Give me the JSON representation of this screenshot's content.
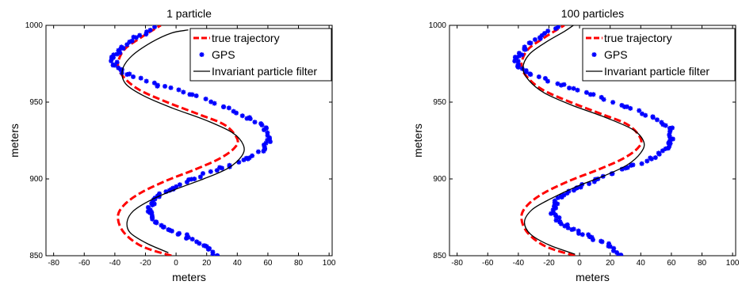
{
  "chart_data": [
    {
      "type": "line",
      "title": "1 particle",
      "xlabel": "meters",
      "ylabel": "meters",
      "xlim": [
        -85,
        102
      ],
      "ylim": [
        850,
        1000
      ],
      "xticks": [
        "-80",
        "-60",
        "-40",
        "-20",
        "0",
        "20",
        "40",
        "60",
        "80",
        "100"
      ],
      "yticks": [
        "850",
        "900",
        "950",
        "1000"
      ],
      "grid": false,
      "legend_position": "top-right",
      "series": [
        {
          "name": "true trajectory",
          "color": "#ff0000",
          "style": "dashed",
          "points": [
            [
              -3,
              850
            ],
            [
              -22,
              856
            ],
            [
              -34,
              865
            ],
            [
              -38,
              875
            ],
            [
              -34,
              883
            ],
            [
              -23,
              891
            ],
            [
              -6,
              899
            ],
            [
              12,
              906
            ],
            [
              28,
              913
            ],
            [
              38,
              920
            ],
            [
              40,
              926
            ],
            [
              32,
              935
            ],
            [
              15,
              942
            ],
            [
              -6,
              950
            ],
            [
              -24,
              958
            ],
            [
              -34,
              966
            ],
            [
              -38,
              974
            ],
            [
              -34,
              984
            ],
            [
              -23,
              992
            ],
            [
              -10,
              1000
            ]
          ]
        },
        {
          "name": "GPS",
          "color": "#0000ff",
          "style": "markers",
          "points": [
            [
              27,
              850
            ],
            [
              20,
              856
            ],
            [
              8,
              862
            ],
            [
              -5,
              867
            ],
            [
              -13,
              872
            ],
            [
              -17,
              878
            ],
            [
              -16,
              884
            ],
            [
              -12,
              889
            ],
            [
              -2,
              894
            ],
            [
              12,
              900
            ],
            [
              30,
              907
            ],
            [
              47,
              913
            ],
            [
              58,
              920
            ],
            [
              61,
              926
            ],
            [
              59,
              933
            ],
            [
              48,
              940
            ],
            [
              31,
              947
            ],
            [
              9,
              955
            ],
            [
              -12,
              961
            ],
            [
              -32,
              968
            ],
            [
              -40,
              974
            ],
            [
              -41,
              979
            ],
            [
              -36,
              985
            ],
            [
              -26,
              992
            ],
            [
              -14,
              999
            ]
          ]
        },
        {
          "name": "Invariant particle filter",
          "color": "#000000",
          "style": "solid",
          "points": [
            [
              -5,
              852
            ],
            [
              -19,
              858
            ],
            [
              -30,
              865
            ],
            [
              -32,
              872
            ],
            [
              -28,
              879
            ],
            [
              -17,
              886
            ],
            [
              -1,
              893
            ],
            [
              18,
              900
            ],
            [
              34,
              907
            ],
            [
              43,
              915
            ],
            [
              44,
              922
            ],
            [
              37,
              930
            ],
            [
              20,
              938
            ],
            [
              -2,
              946
            ],
            [
              -21,
              954
            ],
            [
              -33,
              962
            ],
            [
              -35,
              971
            ],
            [
              -29,
              980
            ],
            [
              -16,
              989
            ],
            [
              -3,
              995
            ],
            [
              8,
              997
            ]
          ]
        }
      ]
    },
    {
      "type": "line",
      "title": "100 particles",
      "xlabel": "meters",
      "ylabel": "meters",
      "xlim": [
        -85,
        102
      ],
      "ylim": [
        850,
        1000
      ],
      "xticks": [
        "-80",
        "-60",
        "-40",
        "-20",
        "0",
        "20",
        "40",
        "60",
        "80",
        "100"
      ],
      "yticks": [
        "850",
        "900",
        "950",
        "1000"
      ],
      "grid": false,
      "legend_position": "top-right",
      "series": [
        {
          "name": "true trajectory",
          "color": "#ff0000",
          "style": "dashed",
          "points": [
            [
              -3,
              850
            ],
            [
              -22,
              856
            ],
            [
              -34,
              865
            ],
            [
              -38,
              875
            ],
            [
              -34,
              883
            ],
            [
              -23,
              891
            ],
            [
              -6,
              899
            ],
            [
              12,
              906
            ],
            [
              28,
              913
            ],
            [
              38,
              920
            ],
            [
              40,
              926
            ],
            [
              32,
              935
            ],
            [
              15,
              942
            ],
            [
              -6,
              950
            ],
            [
              -24,
              958
            ],
            [
              -34,
              966
            ],
            [
              -38,
              974
            ],
            [
              -34,
              984
            ],
            [
              -23,
              992
            ],
            [
              -10,
              1000
            ]
          ]
        },
        {
          "name": "GPS",
          "color": "#0000ff",
          "style": "markers",
          "points": [
            [
              27,
              850
            ],
            [
              20,
              856
            ],
            [
              8,
              862
            ],
            [
              -5,
              867
            ],
            [
              -13,
              872
            ],
            [
              -17,
              878
            ],
            [
              -16,
              884
            ],
            [
              -12,
              889
            ],
            [
              -2,
              894
            ],
            [
              12,
              900
            ],
            [
              30,
              907
            ],
            [
              47,
              913
            ],
            [
              58,
              920
            ],
            [
              61,
              926
            ],
            [
              59,
              933
            ],
            [
              48,
              940
            ],
            [
              31,
              947
            ],
            [
              9,
              955
            ],
            [
              -12,
              961
            ],
            [
              -32,
              968
            ],
            [
              -40,
              974
            ],
            [
              -41,
              979
            ],
            [
              -36,
              985
            ],
            [
              -26,
              992
            ],
            [
              -14,
              999
            ]
          ]
        },
        {
          "name": "Invariant particle filter",
          "color": "#000000",
          "style": "solid",
          "points": [
            [
              -3,
              851
            ],
            [
              -20,
              857
            ],
            [
              -32,
              864
            ],
            [
              -36,
              872
            ],
            [
              -31,
              880
            ],
            [
              -19,
              887
            ],
            [
              -2,
              895
            ],
            [
              16,
              902
            ],
            [
              31,
              909
            ],
            [
              40,
              917
            ],
            [
              42,
              924
            ],
            [
              35,
              932
            ],
            [
              17,
              940
            ],
            [
              -5,
              948
            ],
            [
              -23,
              956
            ],
            [
              -33,
              964
            ],
            [
              -37,
              972
            ],
            [
              -33,
              981
            ],
            [
              -22,
              989
            ],
            [
              -10,
              996
            ],
            [
              -4,
              1000
            ]
          ]
        }
      ]
    }
  ]
}
